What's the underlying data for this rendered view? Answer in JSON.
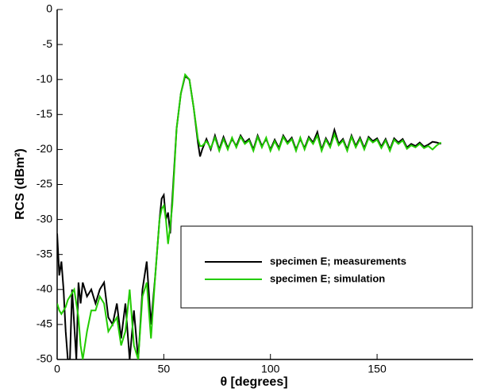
{
  "chart_data": {
    "type": "line",
    "xlabel": "θ [degrees]",
    "ylabel": "RCS (dBm²)",
    "x": [
      0,
      1,
      2,
      3,
      4,
      5,
      6,
      7,
      8,
      9,
      10,
      11,
      12,
      14,
      16,
      18,
      20,
      22,
      24,
      26,
      28,
      30,
      32,
      34,
      36,
      38,
      40,
      42,
      44,
      46,
      48,
      49,
      50,
      51,
      52,
      53,
      54,
      56,
      58,
      60,
      62,
      64,
      66,
      67,
      68,
      70,
      72,
      74,
      76,
      78,
      80,
      82,
      84,
      86,
      88,
      90,
      92,
      94,
      96,
      98,
      100,
      102,
      104,
      106,
      108,
      110,
      112,
      114,
      116,
      118,
      120,
      122,
      124,
      126,
      128,
      130,
      132,
      134,
      136,
      138,
      140,
      142,
      144,
      146,
      148,
      150,
      152,
      154,
      156,
      158,
      160,
      162,
      164,
      166,
      168,
      170,
      172,
      174,
      176,
      178,
      180
    ],
    "series": [
      {
        "name": "specimen E; measurements",
        "color": "#000000",
        "values": [
          -32,
          -38,
          -36,
          -40,
          -46,
          -50,
          -50,
          -40,
          -45,
          -50,
          -39,
          -42,
          -39,
          -41,
          -40,
          -42,
          -40,
          -39,
          -44,
          -45,
          -42,
          -47,
          -42,
          -50,
          -43,
          -50,
          -40,
          -36,
          -45,
          -38,
          -30,
          -27,
          -26.5,
          -30,
          -29,
          -32,
          -27,
          -17,
          -12,
          -9.5,
          -10,
          -14,
          -19,
          -21,
          -20,
          -18.5,
          -20,
          -18,
          -20,
          -18.2,
          -19.8,
          -18.5,
          -19.5,
          -18,
          -19,
          -18.5,
          -20,
          -18,
          -19.5,
          -18.5,
          -20,
          -18.6,
          -19.8,
          -18,
          -19,
          -18.3,
          -20,
          -18.5,
          -19.8,
          -18.2,
          -19,
          -17.5,
          -20,
          -18.4,
          -19.5,
          -17.2,
          -19.2,
          -18.5,
          -20,
          -18,
          -19.5,
          -18.3,
          -19.8,
          -18.2,
          -18.8,
          -18.4,
          -19.6,
          -18.5,
          -20,
          -18.4,
          -19,
          -18.5,
          -19.7,
          -19.2,
          -19.5,
          -19,
          -19.6,
          -19.3,
          -18.9,
          -19,
          -19.2
        ]
      },
      {
        "name": "specimen E; simulation",
        "color": "#22cc00",
        "values": [
          -42,
          -43,
          -43.5,
          -43,
          -42.5,
          -41.5,
          -41,
          -40.5,
          -40,
          -42,
          -44,
          -48,
          -50,
          -46,
          -43,
          -43,
          -41,
          -42,
          -46,
          -45,
          -44,
          -48,
          -46,
          -40,
          -48,
          -50,
          -41,
          -39,
          -47,
          -38,
          -30,
          -28.5,
          -28,
          -30,
          -33.5,
          -31,
          -28,
          -17,
          -12,
          -9.3,
          -10,
          -14,
          -18.5,
          -19.5,
          -19.5,
          -18.8,
          -19.8,
          -18.3,
          -20.2,
          -18.5,
          -20,
          -18.3,
          -19.7,
          -18.2,
          -19.2,
          -18.7,
          -20.2,
          -18.2,
          -19.7,
          -18.3,
          -20.2,
          -18.8,
          -20,
          -18.2,
          -19.2,
          -18.5,
          -20.2,
          -18.3,
          -20,
          -18.4,
          -19.2,
          -18,
          -20.2,
          -18.6,
          -19.7,
          -17.8,
          -19.4,
          -18.7,
          -20.2,
          -18.2,
          -19.7,
          -18.5,
          -20,
          -18.4,
          -19,
          -18.6,
          -19.8,
          -18.7,
          -20.2,
          -18.6,
          -19.2,
          -18.7,
          -19.9,
          -19.4,
          -19.7,
          -19.2,
          -19.8,
          -19.5,
          -20,
          -19.4,
          -19
        ]
      }
    ],
    "xlim": [
      0,
      195
    ],
    "xticks": [
      0,
      50,
      100,
      150
    ],
    "ylim": [
      -50,
      0
    ],
    "yticks": [
      0,
      -5,
      -10,
      -15,
      -20,
      -25,
      -30,
      -35,
      -40,
      -45,
      -50
    ]
  }
}
